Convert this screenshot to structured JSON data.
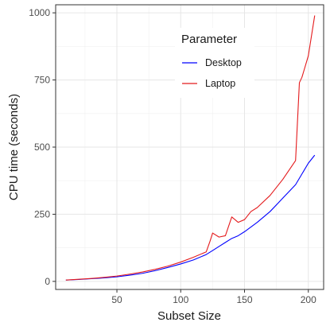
{
  "chart_data": {
    "type": "line",
    "xlabel": "Subset Size",
    "ylabel": "CPU time (seconds)",
    "xlim": [
      2,
      212
    ],
    "ylim": [
      -30,
      1030
    ],
    "x_ticks": [
      50,
      100,
      150,
      200
    ],
    "y_ticks": [
      0,
      250,
      500,
      750,
      1000
    ],
    "x_minor_ticks": [
      25,
      75,
      125,
      175
    ],
    "y_minor_ticks": [
      125,
      375,
      625,
      875
    ],
    "grid": true,
    "legend": {
      "title": "Parameter",
      "placement": "top-center"
    },
    "series": [
      {
        "name": "Desktop",
        "color": "#0000ff",
        "x": [
          10,
          20,
          30,
          40,
          50,
          60,
          70,
          80,
          90,
          100,
          110,
          120,
          125,
          130,
          135,
          140,
          145,
          150,
          160,
          170,
          180,
          190,
          195,
          200,
          205
        ],
        "y": [
          5,
          7,
          10,
          13,
          17,
          23,
          30,
          40,
          52,
          65,
          80,
          100,
          115,
          130,
          145,
          160,
          170,
          185,
          220,
          260,
          310,
          360,
          400,
          440,
          470
        ]
      },
      {
        "name": "Laptop",
        "color": "#e41a1c",
        "x": [
          10,
          20,
          30,
          40,
          50,
          60,
          70,
          80,
          90,
          100,
          110,
          120,
          123,
          125,
          130,
          135,
          140,
          145,
          150,
          155,
          160,
          170,
          180,
          190,
          193,
          195,
          200,
          205
        ],
        "y": [
          5,
          8,
          11,
          15,
          20,
          27,
          35,
          45,
          57,
          72,
          90,
          110,
          150,
          180,
          165,
          170,
          240,
          220,
          230,
          260,
          275,
          320,
          380,
          450,
          740,
          760,
          840,
          990
        ]
      }
    ]
  }
}
